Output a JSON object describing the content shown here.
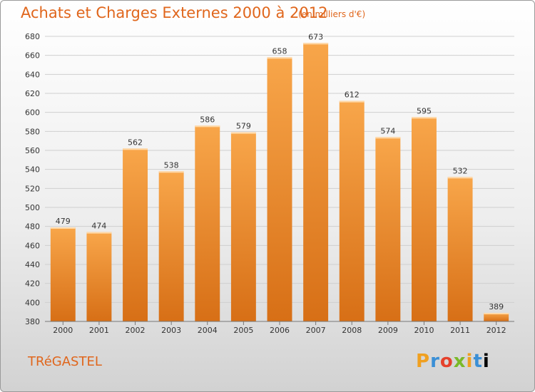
{
  "chart_data": {
    "type": "bar",
    "title": "Achats et Charges Externes 2000 à 2012",
    "subtitle": "(en milliers d'€)",
    "categories": [
      "2000",
      "2001",
      "2002",
      "2003",
      "2004",
      "2005",
      "2006",
      "2007",
      "2008",
      "2009",
      "2010",
      "2011",
      "2012"
    ],
    "values": [
      479,
      474,
      562,
      538,
      586,
      579,
      658,
      673,
      612,
      574,
      595,
      532,
      389
    ],
    "ylim": [
      380,
      680
    ],
    "yticks": [
      380,
      400,
      420,
      440,
      460,
      480,
      500,
      520,
      540,
      560,
      580,
      600,
      620,
      640,
      660,
      680
    ],
    "xlabel": "",
    "ylabel": "",
    "grid": true,
    "bar_color": "#f08a2a"
  },
  "footer": {
    "commune": "TRéGASTEL",
    "logo_letters": [
      "P",
      "r",
      "o",
      "x",
      "i",
      "t",
      "i"
    ]
  }
}
